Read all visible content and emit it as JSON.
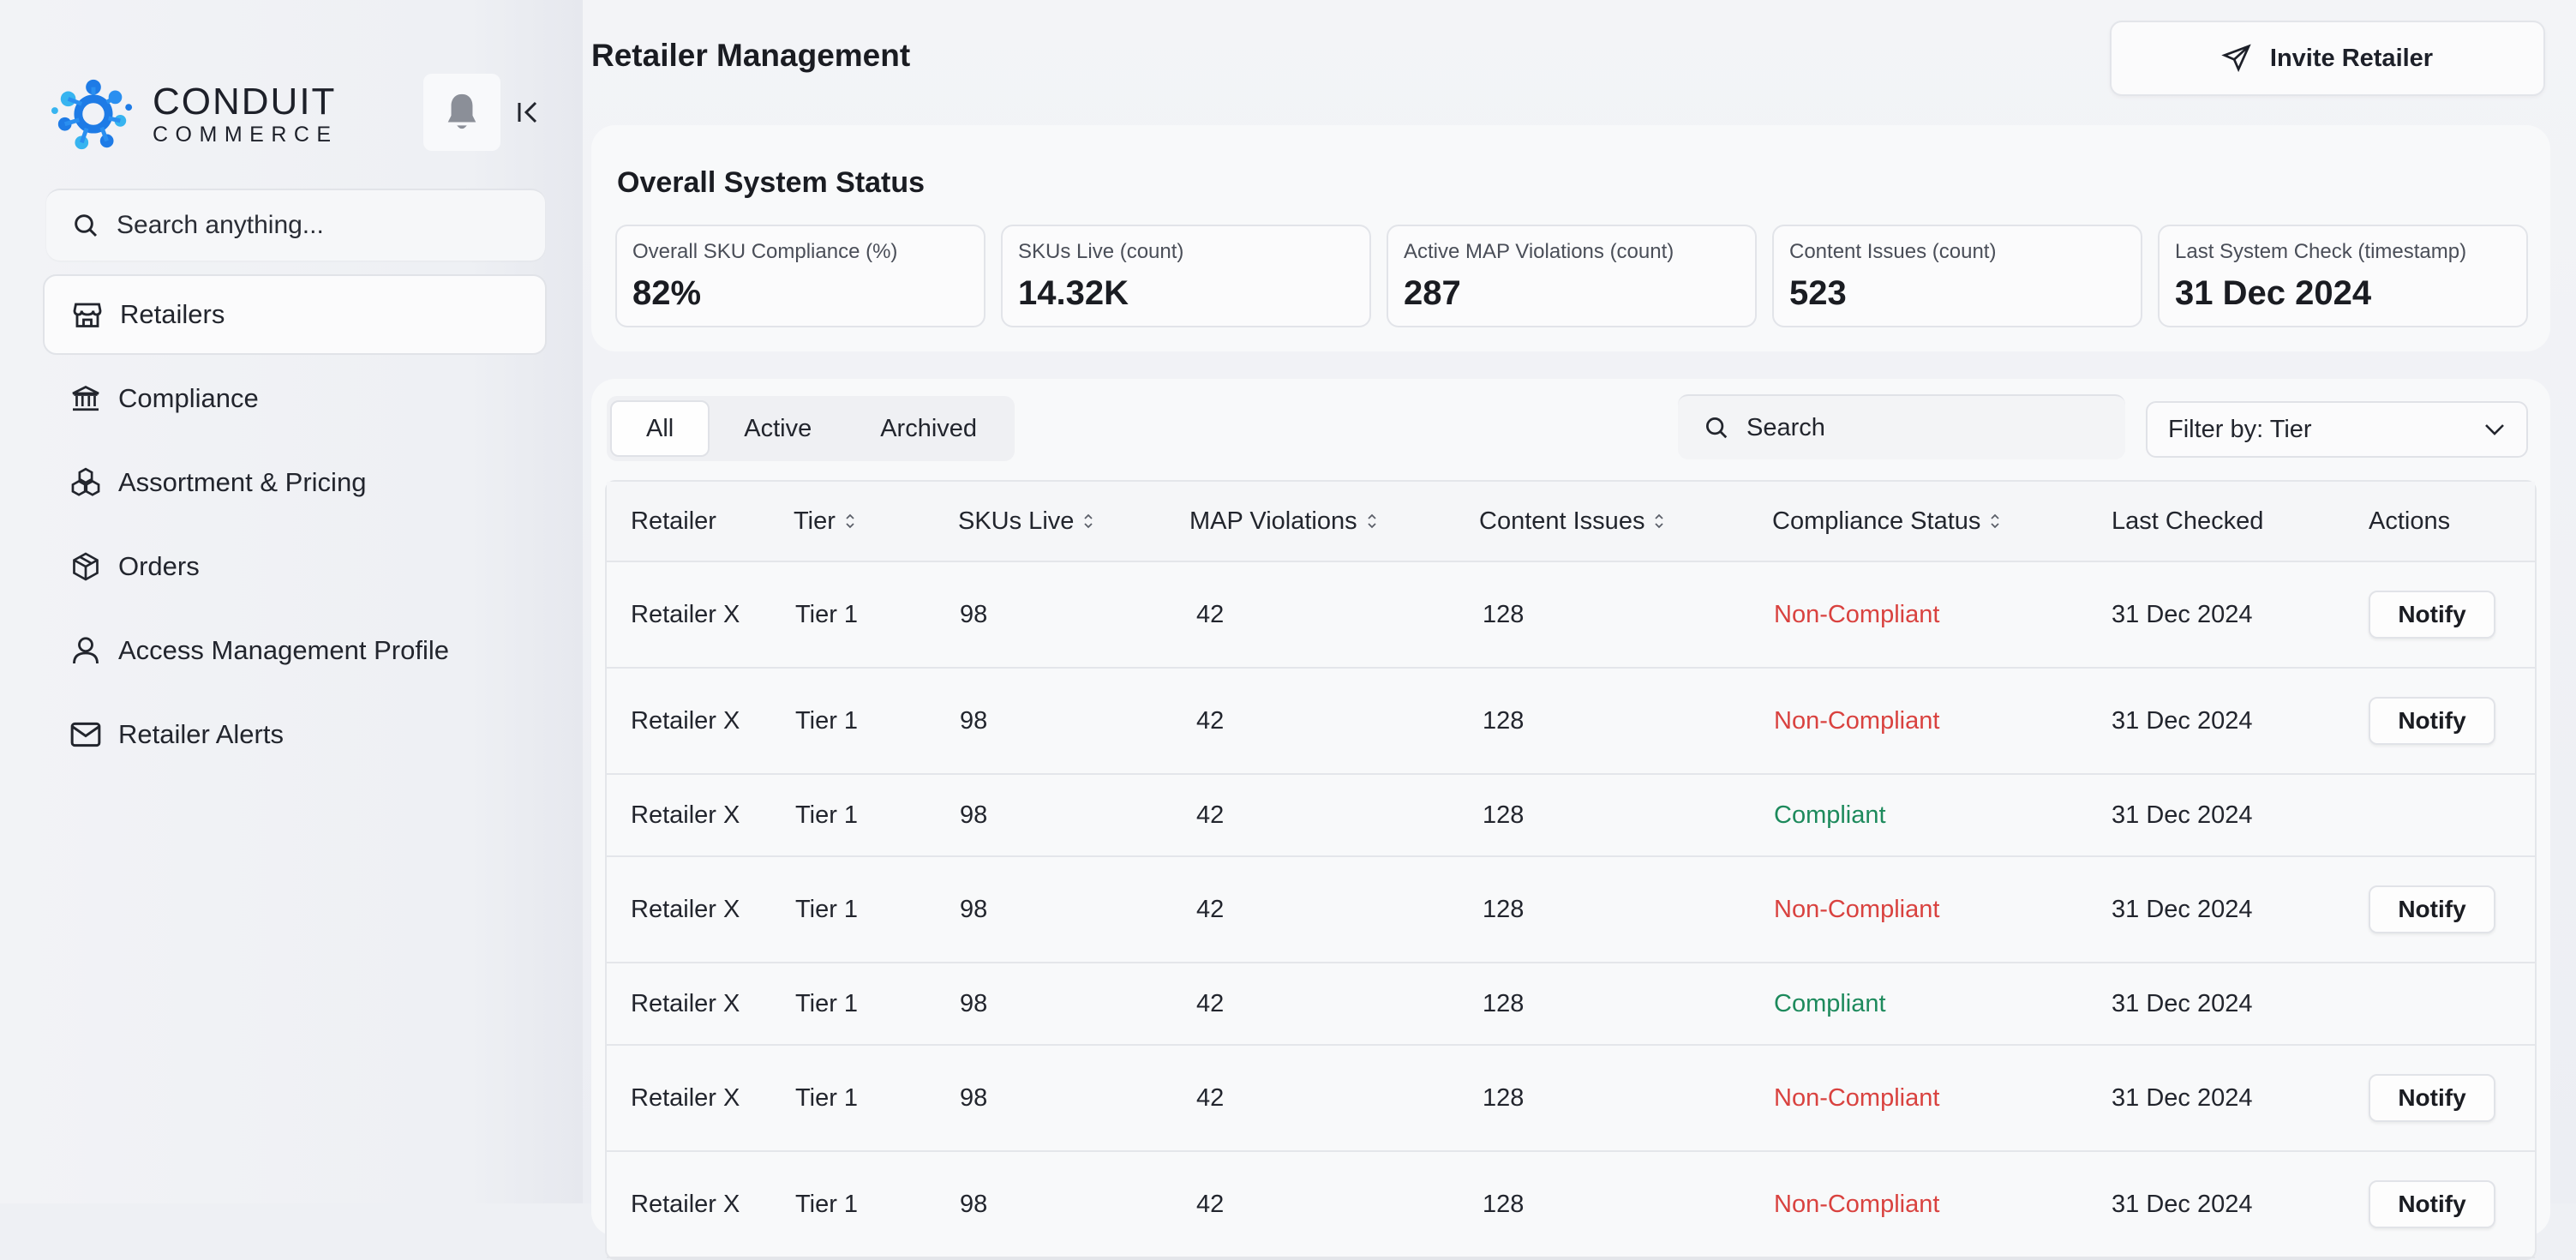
{
  "brand": {
    "name_line1": "CONDUIT",
    "name_line2": "COMMERCE",
    "colors": {
      "primary": "#1e7be6",
      "accent": "#37b4f0"
    }
  },
  "sidebar": {
    "search_placeholder": "Search anything...",
    "items": [
      {
        "label": "Retailers",
        "icon": "store-icon",
        "active": true
      },
      {
        "label": "Compliance",
        "icon": "bank-icon",
        "active": false
      },
      {
        "label": "Assortment & Pricing",
        "icon": "boxes-icon",
        "active": false
      },
      {
        "label": "Orders",
        "icon": "package-icon",
        "active": false
      },
      {
        "label": "Access Management Profile",
        "icon": "user-icon",
        "active": false
      },
      {
        "label": "Retailer Alerts",
        "icon": "mail-icon",
        "active": false
      }
    ]
  },
  "header": {
    "title": "Retailer Management",
    "invite_label": "Invite Retailer"
  },
  "status": {
    "title": "Overall System Status",
    "kpis": [
      {
        "label": "Overall SKU Compliance (%)",
        "value": "82%"
      },
      {
        "label": "SKUs Live (count)",
        "value": "14.32K"
      },
      {
        "label": "Active MAP Violations (count)",
        "value": "287"
      },
      {
        "label": "Content Issues (count)",
        "value": "523"
      },
      {
        "label": "Last System Check (timestamp)",
        "value": "31 Dec 2024"
      }
    ]
  },
  "table": {
    "tabs": [
      "All",
      "Active",
      "Archived"
    ],
    "active_tab": "All",
    "search_placeholder": "Search",
    "filter_label": "Filter by: Tier",
    "columns": [
      "Retailer",
      "Tier",
      "SKUs Live",
      "MAP Violations",
      "Content Issues",
      "Compliance Status",
      "Last Checked",
      "Actions"
    ],
    "sortable": [
      false,
      true,
      true,
      true,
      true,
      true,
      false,
      false
    ],
    "action_label": "Notify",
    "status_colors": {
      "Non-Compliant": "#d9423f",
      "Compliant": "#1d8a5c"
    },
    "rows": [
      {
        "retailer": "Retailer X",
        "tier": "Tier 1",
        "skus": "98",
        "map": "42",
        "content": "128",
        "status": "Non-Compliant",
        "checked": "31 Dec 2024",
        "notify": true
      },
      {
        "retailer": "Retailer X",
        "tier": "Tier 1",
        "skus": "98",
        "map": "42",
        "content": "128",
        "status": "Non-Compliant",
        "checked": "31 Dec 2024",
        "notify": true
      },
      {
        "retailer": "Retailer X",
        "tier": "Tier 1",
        "skus": "98",
        "map": "42",
        "content": "128",
        "status": "Compliant",
        "checked": "31 Dec 2024",
        "notify": false
      },
      {
        "retailer": "Retailer X",
        "tier": "Tier 1",
        "skus": "98",
        "map": "42",
        "content": "128",
        "status": "Non-Compliant",
        "checked": "31 Dec 2024",
        "notify": true
      },
      {
        "retailer": "Retailer X",
        "tier": "Tier 1",
        "skus": "98",
        "map": "42",
        "content": "128",
        "status": "Compliant",
        "checked": "31 Dec 2024",
        "notify": false
      },
      {
        "retailer": "Retailer X",
        "tier": "Tier 1",
        "skus": "98",
        "map": "42",
        "content": "128",
        "status": "Non-Compliant",
        "checked": "31 Dec 2024",
        "notify": true
      },
      {
        "retailer": "Retailer X",
        "tier": "Tier 1",
        "skus": "98",
        "map": "42",
        "content": "128",
        "status": "Non-Compliant",
        "checked": "31 Dec 2024",
        "notify": true
      }
    ]
  }
}
